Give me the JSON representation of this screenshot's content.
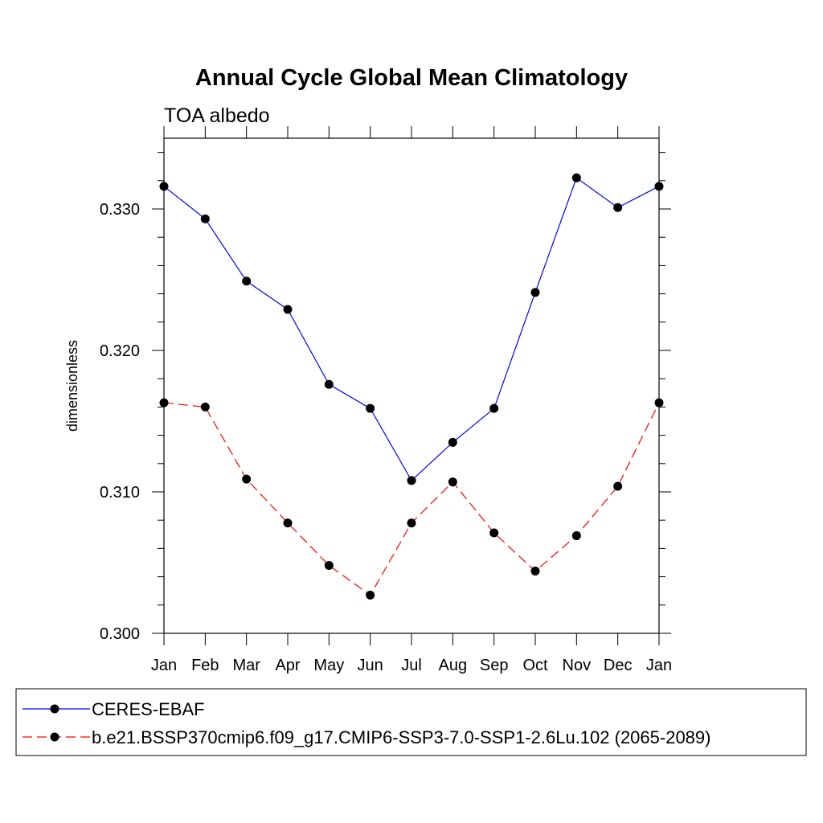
{
  "chart_data": {
    "type": "line",
    "title": "Annual Cycle Global Mean Climatology",
    "subtitle": "TOA albedo",
    "ylabel": "dimensionless",
    "xlabel": "",
    "categories": [
      "Jan",
      "Feb",
      "Mar",
      "Apr",
      "May",
      "Jun",
      "Jul",
      "Aug",
      "Sep",
      "Oct",
      "Nov",
      "Dec",
      "Jan"
    ],
    "ylim": [
      0.3,
      0.335
    ],
    "yticks": [
      0.3,
      0.31,
      0.32,
      0.33
    ],
    "ytick_labels": [
      "0.300",
      "0.310",
      "0.320",
      "0.330"
    ],
    "grid": false,
    "legend_position": "bottom",
    "series": [
      {
        "name": "CERES-EBAF",
        "color": "#0000ff",
        "line_style": "solid",
        "marker": "filled-circle",
        "values": [
          0.3316,
          0.3293,
          0.3249,
          0.3229,
          0.3176,
          0.3159,
          0.3108,
          0.3135,
          0.3159,
          0.3241,
          0.3322,
          0.3301,
          0.3316
        ]
      },
      {
        "name": "b.e21.BSSP370cmip6.f09_g17.CMIP6-SSP3-7.0-SSP1-2.6Lu.102 (2065-2089)",
        "color": "#ff0000",
        "line_style": "dashed",
        "marker": "filled-circle",
        "values": [
          0.3163,
          0.316,
          0.3109,
          0.3078,
          0.3048,
          0.3027,
          0.3078,
          0.3107,
          0.3071,
          0.3044,
          0.3069,
          0.3104,
          0.3163
        ]
      }
    ]
  }
}
